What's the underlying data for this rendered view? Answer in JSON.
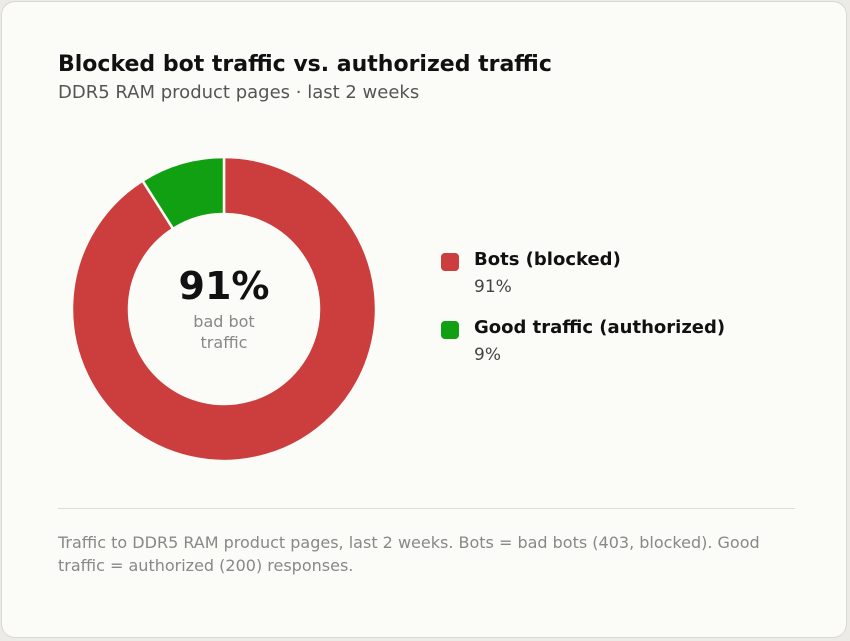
{
  "header": {
    "title": "Blocked bot traffic vs. authorized traffic",
    "subtitle": "DDR5 RAM product pages · last 2 weeks"
  },
  "center": {
    "value": "91%",
    "label_line1": "bad bot",
    "label_line2": "traffic"
  },
  "legend": [
    {
      "name": "Bots (blocked)",
      "value": "91%",
      "color": "#cc3d3d"
    },
    {
      "name": "Good traffic (authorized)",
      "value": "9%",
      "color": "#11a011"
    }
  ],
  "footnote": "Traffic to DDR5 RAM product pages, last 2 weeks. Bots = bad bots (403, blocked). Good traffic = authorized (200) responses.",
  "chart_data": {
    "type": "pie",
    "style": "donut",
    "categories": [
      "Bots (blocked)",
      "Good traffic (authorized)"
    ],
    "values": [
      91,
      9
    ],
    "unit": "%",
    "colors": [
      "#cc3d3d",
      "#11a011"
    ],
    "title": "Blocked bot traffic vs. authorized traffic",
    "subtitle": "DDR5 RAM product pages · last 2 weeks",
    "center_label": "91% bad bot traffic",
    "legend_position": "right"
  }
}
